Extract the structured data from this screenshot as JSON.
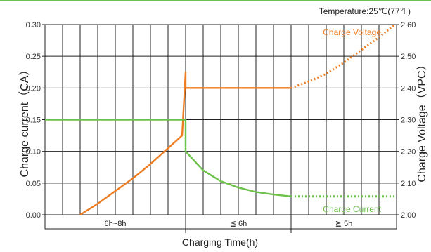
{
  "chart_data": {
    "type": "line",
    "note": "Temperature:25℃(77℉)",
    "xlabel": "Charging Time(h)",
    "ylabel_left": "Charge current（CA）",
    "ylabel_right": "Charge Voltage（VPC）",
    "ylim_left": [
      0,
      0.3
    ],
    "yticks_left": [
      "0.00",
      "0.05",
      "0.10",
      "0.15",
      "0.20",
      "0.25",
      "0.30"
    ],
    "ylim_right": [
      2.0,
      2.6
    ],
    "yticks_right": [
      "2.00",
      "2.10",
      "2.20",
      "2.30",
      "2.40",
      "2.50",
      "2.60"
    ],
    "phases": [
      {
        "label": "6h~8h",
        "start": 0,
        "end": 8
      },
      {
        "label": "≦ 6h",
        "start": 8,
        "end": 14
      },
      {
        "label": "≧ 5h",
        "start": 14,
        "end": 20
      }
    ],
    "grid": true,
    "series": [
      {
        "name": "Charge Voltage",
        "axis": "right",
        "color": "#ee7d22",
        "segments": [
          {
            "style": "solid",
            "points": [
              [
                2,
                2.0
              ],
              [
                3,
                2.035
              ],
              [
                4,
                2.075
              ],
              [
                5,
                2.115
              ],
              [
                6,
                2.16
              ],
              [
                7,
                2.21
              ],
              [
                7.8,
                2.25
              ],
              [
                8,
                2.45
              ],
              [
                8,
                2.4
              ],
              [
                10,
                2.4
              ],
              [
                12,
                2.4
              ],
              [
                14,
                2.4
              ]
            ]
          },
          {
            "style": "dotted",
            "points": [
              [
                14,
                2.4
              ],
              [
                15,
                2.42
              ],
              [
                16,
                2.445
              ],
              [
                17,
                2.48
              ],
              [
                18,
                2.52
              ],
              [
                19,
                2.56
              ],
              [
                19.9,
                2.6
              ]
            ]
          }
        ]
      },
      {
        "name": "Charge Current",
        "axis": "left",
        "color": "#6cc24a",
        "segments": [
          {
            "style": "solid",
            "points": [
              [
                0,
                0.15
              ],
              [
                8,
                0.15
              ],
              [
                8,
                0.1
              ],
              [
                9,
                0.07
              ],
              [
                10,
                0.053
              ],
              [
                11,
                0.043
              ],
              [
                12,
                0.036
              ],
              [
                13,
                0.032
              ],
              [
                14,
                0.029
              ]
            ]
          },
          {
            "style": "dotted",
            "points": [
              [
                14,
                0.029
              ],
              [
                20,
                0.029
              ]
            ]
          }
        ]
      }
    ]
  }
}
